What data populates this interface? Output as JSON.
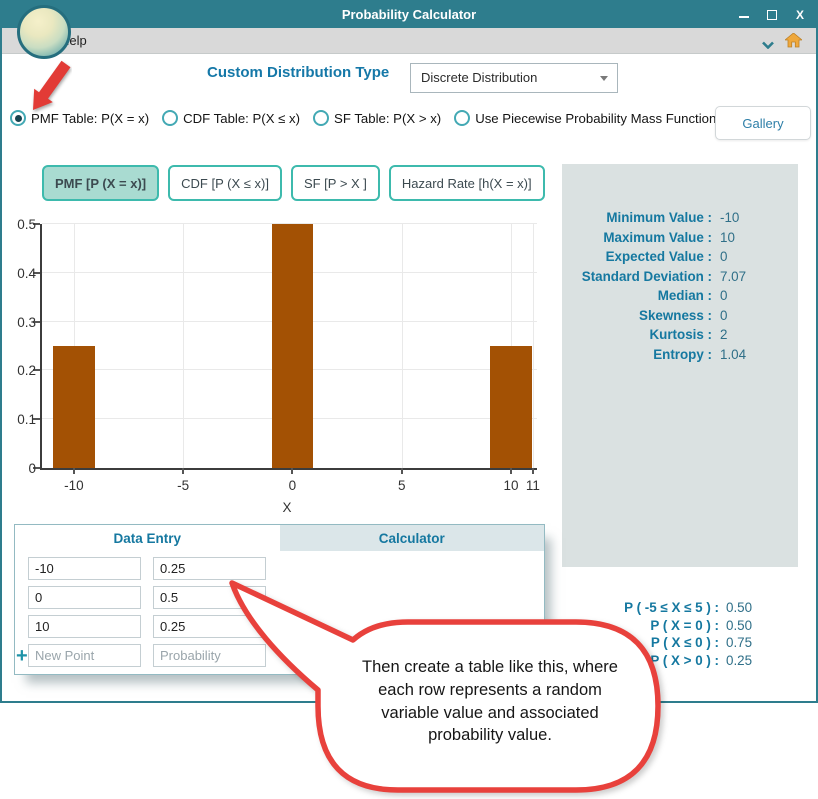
{
  "window": {
    "title": "Probability Calculator",
    "controls": [
      "minimize",
      "maximize",
      "close"
    ]
  },
  "menubar": {
    "help_label": "Help"
  },
  "header": {
    "label": "Custom Distribution Type",
    "distribution_value": "Discrete Distribution"
  },
  "table_type_options": [
    {
      "label": "PMF Table: P(X = x)",
      "selected": true
    },
    {
      "label": "CDF Table: P(X ≤ x)",
      "selected": false
    },
    {
      "label": "SF Table: P(X > x)",
      "selected": false
    },
    {
      "label": "Use Piecewise Probability Mass Function",
      "selected": false
    }
  ],
  "gallery_button_label": "Gallery",
  "plot_tabs": [
    {
      "label": "PMF [P (X = x)]",
      "active": true
    },
    {
      "label": "CDF [P (X ≤ x)]",
      "active": false
    },
    {
      "label": "SF [P > X ]",
      "active": false
    },
    {
      "label": "Hazard Rate [h(X = x)]",
      "active": false
    }
  ],
  "chart_data": {
    "type": "bar",
    "x": [
      -10,
      0,
      10
    ],
    "values": [
      0.25,
      0.5,
      0.25
    ],
    "bar_width": 1.9,
    "bar_color": "#A35104",
    "title": "",
    "xlabel": "X",
    "ylabel": "",
    "xlim": [
      -11.46,
      11.19
    ],
    "ylim": [
      0,
      0.5
    ],
    "x_ticks": [
      -10,
      -5,
      0,
      5,
      10,
      11
    ],
    "y_ticks": [
      0,
      0.1,
      0.2,
      0.3,
      0.4,
      0.5
    ],
    "grid": true,
    "legend": null
  },
  "stats_panel": [
    {
      "label": "Minimum Value :",
      "value": "-10"
    },
    {
      "label": "Maximum Value :",
      "value": "10"
    },
    {
      "label": "Expected Value :",
      "value": "0"
    },
    {
      "label": "Standard Deviation :",
      "value": "7.07"
    },
    {
      "label": "Median :",
      "value": "0"
    },
    {
      "label": "Skewness :",
      "value": "0"
    },
    {
      "label": "Kurtosis :",
      "value": "2"
    },
    {
      "label": "Entropy :",
      "value": "1.04"
    }
  ],
  "data_entry": {
    "tabs": [
      {
        "label": "Data Entry",
        "active": true
      },
      {
        "label": "Calculator",
        "active": false
      }
    ],
    "rows": [
      {
        "point": "-10",
        "probability": "0.25"
      },
      {
        "point": "0",
        "probability": "0.5"
      },
      {
        "point": "10",
        "probability": "0.25"
      }
    ],
    "new_row": {
      "add_icon": "+",
      "point_placeholder": "New Point",
      "probability_placeholder": "Probability"
    }
  },
  "probability_results": [
    {
      "label": "P ( -5 ≤ X ≤ 5 ) :",
      "value": "0.50"
    },
    {
      "label": "P ( X = 0 ) :",
      "value": "0.50"
    },
    {
      "label": "P ( X ≤ 0 ) :",
      "value": "0.75"
    },
    {
      "label": "P ( X > 0 ) :",
      "value": "0.25"
    }
  ],
  "callout": {
    "text": "Then create a table like this, where each row represents a random variable value and associated probability value."
  },
  "colors": {
    "titlebar": "#2E7D8D",
    "accent_text": "#1578A0",
    "tab_border": "#3DBAAD",
    "tab_active_bg": "#A9DBD1",
    "bar": "#A35104",
    "callout_red": "#E8413C",
    "stats_bg": "#DAE1E1",
    "home_icon": "#EFA83C"
  }
}
